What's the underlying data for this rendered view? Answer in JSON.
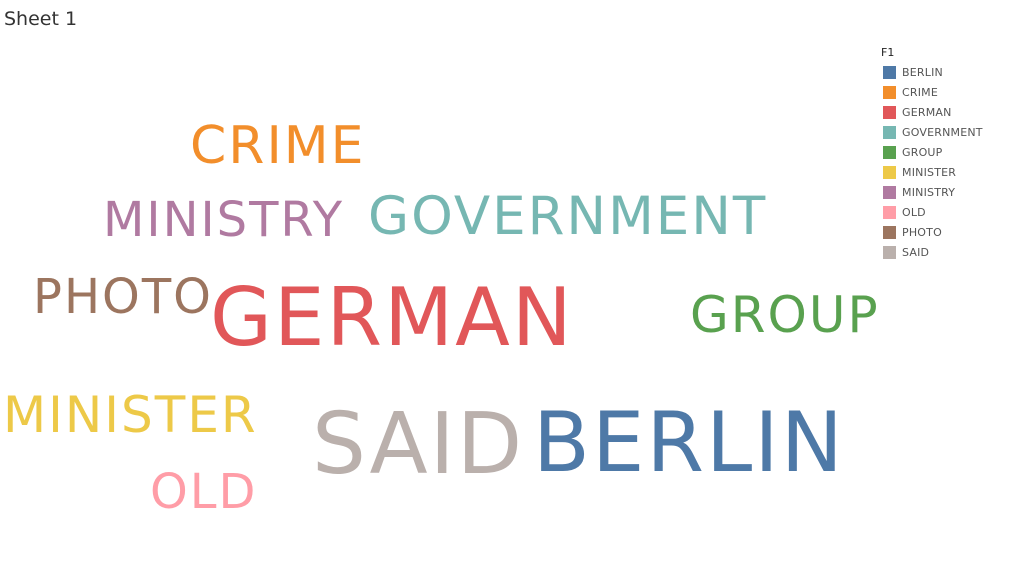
{
  "sheet": {
    "title": "Sheet 1"
  },
  "chart_data": {
    "type": "wordcloud",
    "legend": {
      "title": "F1",
      "placement": "top-right",
      "items": [
        {
          "label": "BERLIN",
          "color": "#4e79a7"
        },
        {
          "label": "CRIME",
          "color": "#f28e2b"
        },
        {
          "label": "GERMAN",
          "color": "#e15759"
        },
        {
          "label": "GOVERNMENT",
          "color": "#76b7b2"
        },
        {
          "label": "GROUP",
          "color": "#59a14f"
        },
        {
          "label": "MINISTER",
          "color": "#edc948"
        },
        {
          "label": "MINISTRY",
          "color": "#b07aa1"
        },
        {
          "label": "OLD",
          "color": "#ff9da7"
        },
        {
          "label": "PHOTO",
          "color": "#9c755f"
        },
        {
          "label": "SAID",
          "color": "#bab0ac"
        }
      ]
    },
    "words": [
      {
        "text": "BERLIN",
        "color": "#4e79a7"
      },
      {
        "text": "CRIME",
        "color": "#f28e2b"
      },
      {
        "text": "GERMAN",
        "color": "#e15759"
      },
      {
        "text": "GOVERNMENT",
        "color": "#76b7b2"
      },
      {
        "text": "GROUP",
        "color": "#59a14f"
      },
      {
        "text": "MINISTER",
        "color": "#edc948"
      },
      {
        "text": "MINISTRY",
        "color": "#b07aa1"
      },
      {
        "text": "OLD",
        "color": "#ff9da7"
      },
      {
        "text": "PHOTO",
        "color": "#9c755f"
      },
      {
        "text": "SAID",
        "color": "#bab0ac"
      }
    ]
  }
}
